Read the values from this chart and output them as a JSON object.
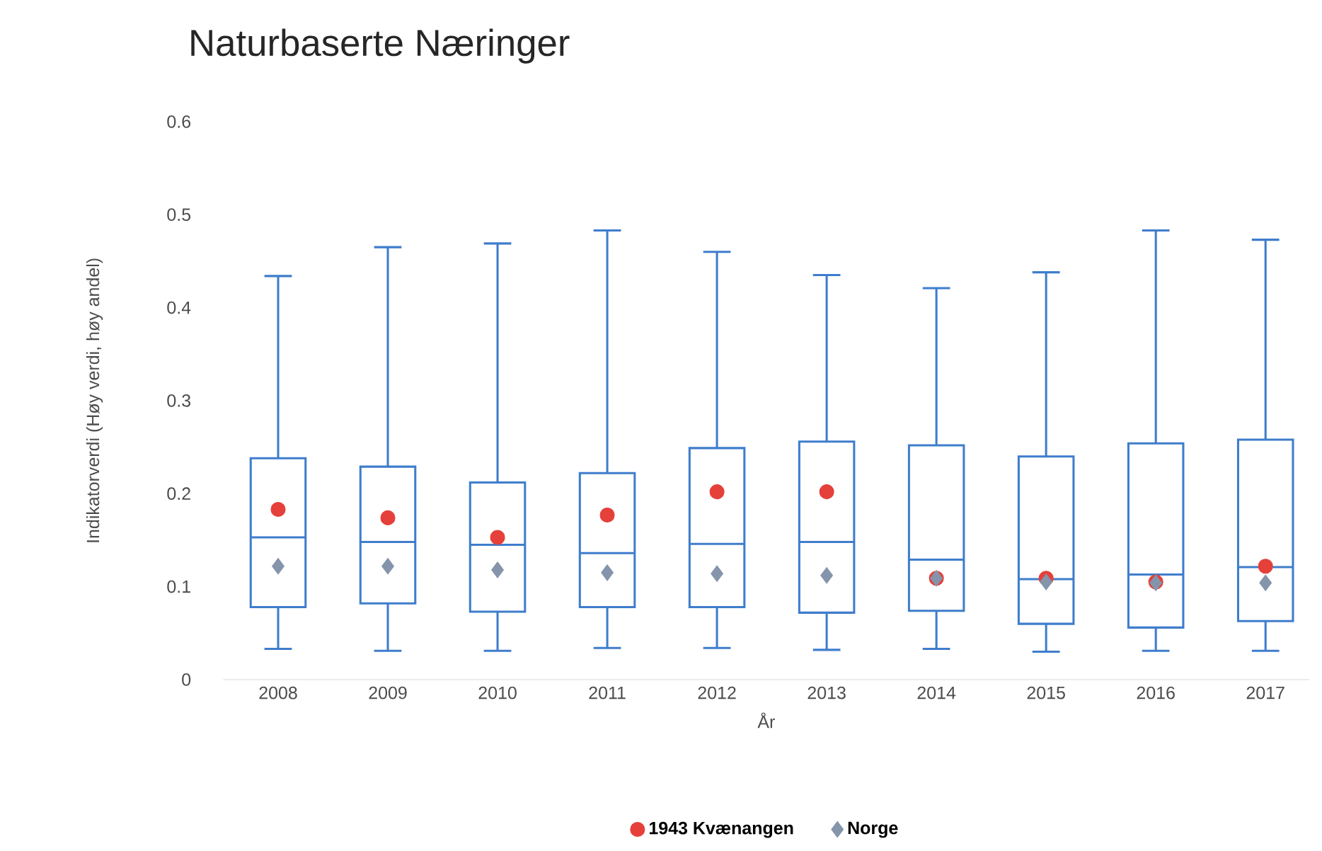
{
  "chart_data": {
    "type": "box",
    "title": "Naturbaserte Næringer",
    "xlabel": "År",
    "ylabel": "Indikatorverdi (Høy verdi, høy andel)",
    "categories": [
      "2008",
      "2009",
      "2010",
      "2011",
      "2012",
      "2013",
      "2014",
      "2015",
      "2016",
      "2017"
    ],
    "boxes": [
      {
        "low": 0.033,
        "q1": 0.078,
        "median": 0.153,
        "q3": 0.238,
        "high": 0.434
      },
      {
        "low": 0.031,
        "q1": 0.082,
        "median": 0.148,
        "q3": 0.229,
        "high": 0.465
      },
      {
        "low": 0.031,
        "q1": 0.073,
        "median": 0.145,
        "q3": 0.212,
        "high": 0.469
      },
      {
        "low": 0.034,
        "q1": 0.078,
        "median": 0.136,
        "q3": 0.222,
        "high": 0.483
      },
      {
        "low": 0.034,
        "q1": 0.078,
        "median": 0.146,
        "q3": 0.249,
        "high": 0.46
      },
      {
        "low": 0.032,
        "q1": 0.072,
        "median": 0.148,
        "q3": 0.256,
        "high": 0.435
      },
      {
        "low": 0.033,
        "q1": 0.074,
        "median": 0.129,
        "q3": 0.252,
        "high": 0.421
      },
      {
        "low": 0.03,
        "q1": 0.06,
        "median": 0.108,
        "q3": 0.24,
        "high": 0.438
      },
      {
        "low": 0.031,
        "q1": 0.056,
        "median": 0.113,
        "q3": 0.254,
        "high": 0.483
      },
      {
        "low": 0.031,
        "q1": 0.063,
        "median": 0.121,
        "q3": 0.258,
        "high": 0.473
      }
    ],
    "color": "#3f7dcc",
    "series": [
      {
        "name": "1943 Kvænangen",
        "type": "scatter",
        "marker": "circle",
        "color": "#e5403a",
        "values": [
          0.183,
          0.174,
          0.153,
          0.177,
          0.202,
          0.202,
          0.109,
          0.109,
          0.105,
          0.122
        ]
      },
      {
        "name": "Norge",
        "type": "scatter",
        "marker": "diamond",
        "color": "#8494ab",
        "values": [
          0.122,
          0.122,
          0.118,
          0.115,
          0.114,
          0.112,
          0.109,
          0.105,
          0.104,
          0.104
        ]
      }
    ],
    "ylim": [
      0,
      0.6
    ],
    "yticks": [
      0,
      0.1,
      0.2,
      0.3,
      0.4,
      0.5,
      0.6
    ],
    "legend": "bottom"
  }
}
